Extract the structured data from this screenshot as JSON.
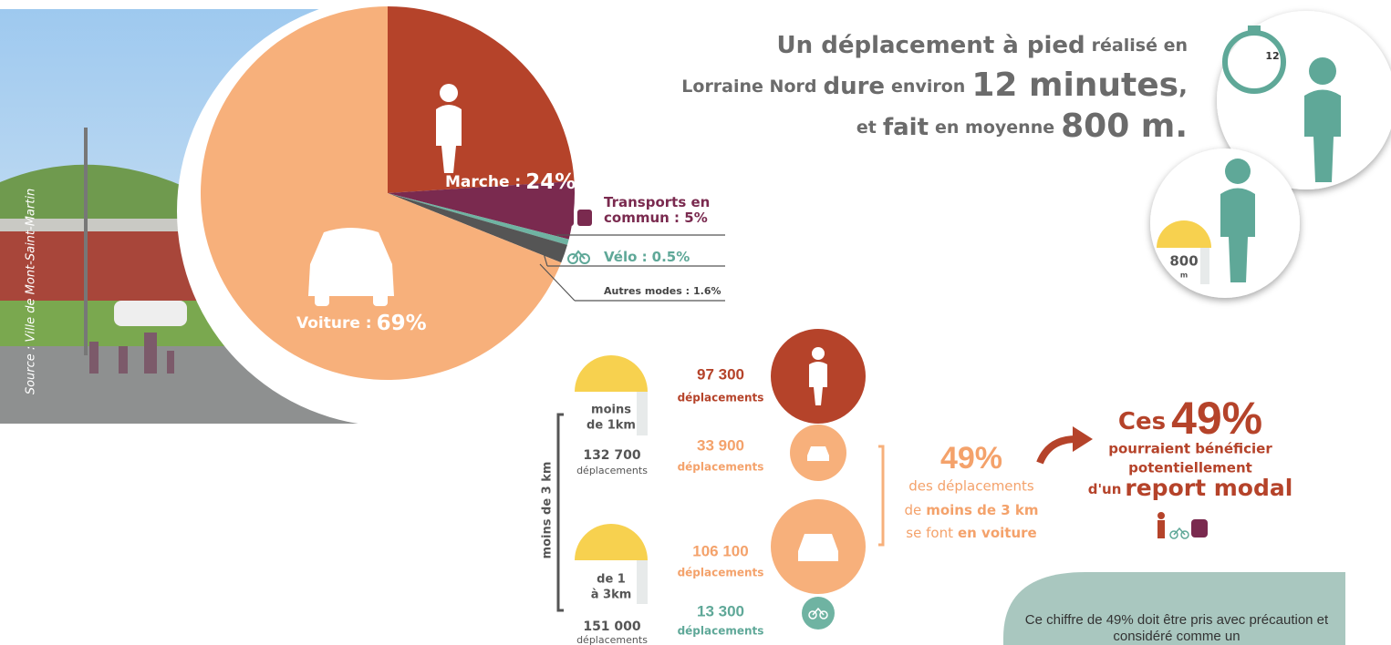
{
  "chart_data": {
    "type": "pie",
    "categories": [
      "Marche :",
      "Transports en commun :",
      "Vélo :",
      "Autres modes :",
      "Voiture :"
    ],
    "values": [
      24,
      5,
      0.5,
      1.6,
      69
    ],
    "value_labels": [
      "24%",
      "5%",
      "0.5%",
      "1.6%",
      "69%"
    ],
    "colors": [
      "#b5432a",
      "#7a2a4f",
      "#6fb3a2",
      "#555555",
      "#f7b07b"
    ]
  },
  "photo_credit": "Source : Ville de Mont-Saint-Martin",
  "headline": {
    "line1": [
      "Un déplacement à pied",
      "réalisé en"
    ],
    "line2": [
      "Lorraine Nord",
      "dure",
      "environ",
      "12 minutes",
      ","
    ],
    "line3": [
      "et",
      "fait",
      "en moyenne",
      "800 m."
    ]
  },
  "stopwatch": "12",
  "distance": {
    "value": "800",
    "unit": "m"
  },
  "distance_axis": "moins de 3 km",
  "groups": [
    {
      "label": [
        "moins",
        "de 1km"
      ],
      "total": "132 700",
      "total_unit": "déplacements",
      "modes": [
        {
          "count": "97 300",
          "unit": "déplacements"
        },
        {
          "count": "33 900",
          "unit": "déplacements"
        }
      ]
    },
    {
      "label": [
        "de 1",
        "à 3km"
      ],
      "total": "151 000",
      "total_unit": "déplacements",
      "modes": [
        {
          "count": "106 100",
          "unit": "déplacements"
        },
        {
          "count": "13 300",
          "unit": "déplacements"
        }
      ]
    }
  ],
  "summary": {
    "value": "49%",
    "line1": "des déplacements",
    "line2": [
      "de",
      "moins de 3 km"
    ],
    "line3": [
      "se font",
      "en voiture"
    ]
  },
  "callout": {
    "prefix": "Ces",
    "value": "49%",
    "line1": "pourraient bénéficier",
    "line2": "potentiellement",
    "line3": [
      "d'un",
      "report modal"
    ]
  },
  "note": "Ce chiffre de 49% doit être pris avec précaution et considéré comme un"
}
